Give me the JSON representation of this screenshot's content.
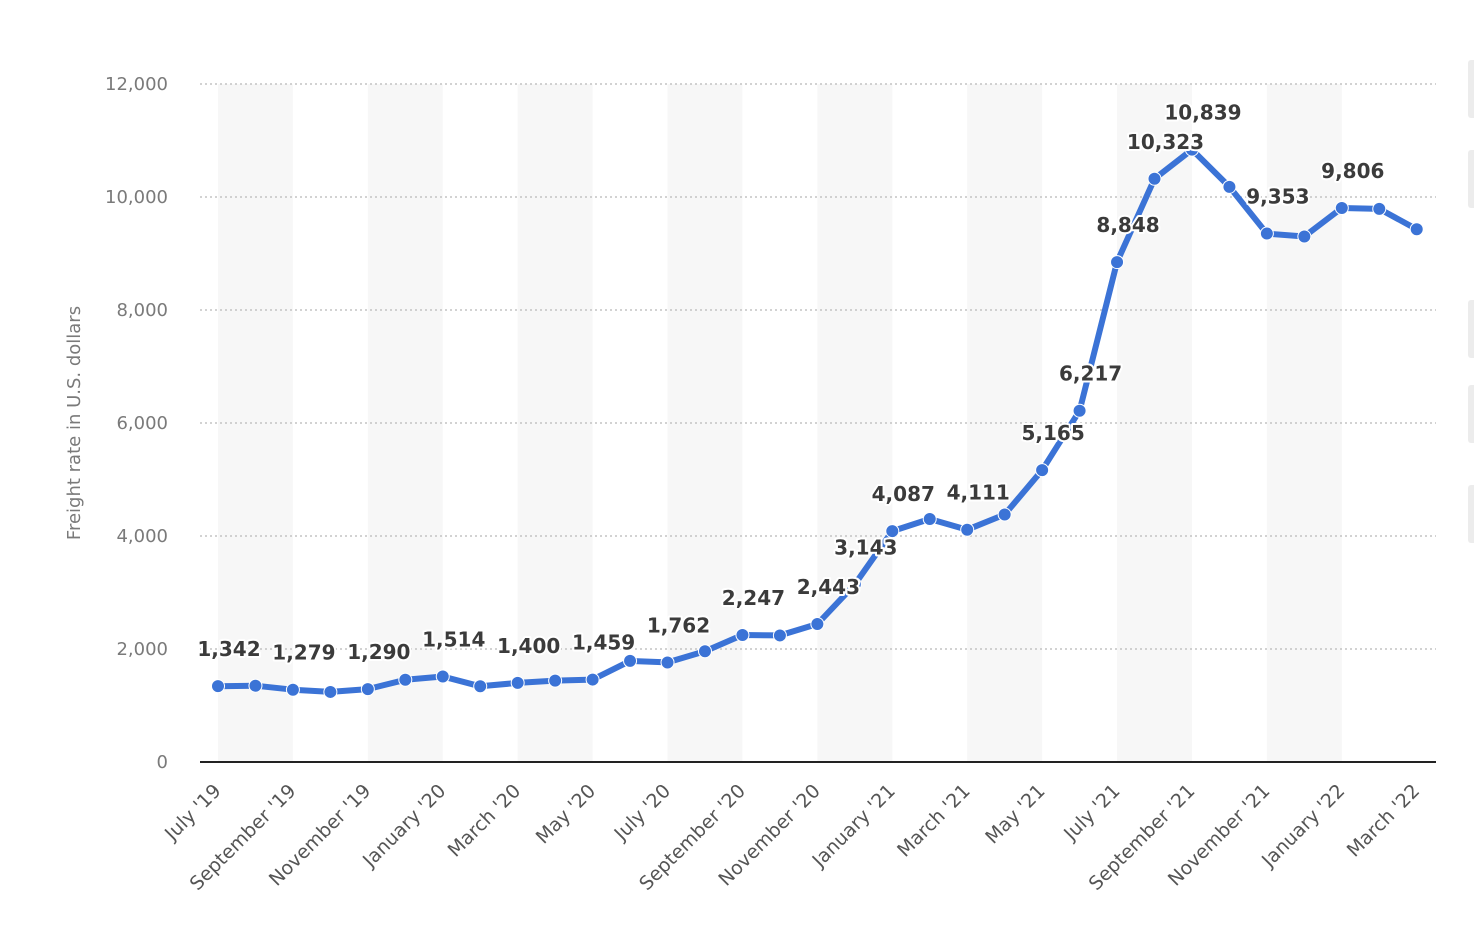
{
  "chart_data": {
    "type": "line",
    "ylabel": "Freight rate in U.S. dollars",
    "xlabel": "",
    "ylim": [
      0,
      12000
    ],
    "y_ticks": [
      "0",
      "2,000",
      "4,000",
      "6,000",
      "8,000",
      "10,000",
      "12,000"
    ],
    "y_tick_values": [
      0,
      2000,
      4000,
      6000,
      8000,
      10000,
      12000
    ],
    "x_tick_labels": [
      "July '19",
      "September '19",
      "November '19",
      "January '20",
      "March '20",
      "May '20",
      "July '20",
      "September '20",
      "November '20",
      "January '21",
      "March '21",
      "May '21",
      "July '21",
      "September '21",
      "November '21",
      "January '22",
      "March '22"
    ],
    "x_tick_index": [
      0,
      2,
      4,
      6,
      8,
      10,
      12,
      14,
      16,
      18,
      20,
      22,
      24,
      26,
      28,
      30,
      32
    ],
    "grid": true,
    "line_color": "#3b73d6",
    "series": [
      {
        "values": [
          1342,
          1350,
          1279,
          1240,
          1290,
          1455,
          1514,
          1340,
          1400,
          1440,
          1459,
          1790,
          1762,
          1960,
          2247,
          2240,
          2443,
          3143,
          4087,
          4300,
          4111,
          4380,
          5165,
          6217,
          8848,
          10323,
          10839,
          10180,
          9353,
          9300,
          9806,
          9790,
          9430
        ]
      }
    ],
    "data_labels": [
      {
        "index": 0,
        "text": "1,342"
      },
      {
        "index": 2,
        "text": "1,279"
      },
      {
        "index": 4,
        "text": "1,290"
      },
      {
        "index": 6,
        "text": "1,514"
      },
      {
        "index": 8,
        "text": "1,400"
      },
      {
        "index": 10,
        "text": "1,459"
      },
      {
        "index": 12,
        "text": "1,762"
      },
      {
        "index": 14,
        "text": "2,247"
      },
      {
        "index": 16,
        "text": "2,443"
      },
      {
        "index": 17,
        "text": "3,143"
      },
      {
        "index": 18,
        "text": "4,087"
      },
      {
        "index": 20,
        "text": "4,111"
      },
      {
        "index": 22,
        "text": "5,165"
      },
      {
        "index": 23,
        "text": "6,217"
      },
      {
        "index": 24,
        "text": "8,848"
      },
      {
        "index": 25,
        "text": "10,323"
      },
      {
        "index": 26,
        "text": "10,839"
      },
      {
        "index": 28,
        "text": "9,353"
      },
      {
        "index": 30,
        "text": "9,806"
      }
    ]
  }
}
